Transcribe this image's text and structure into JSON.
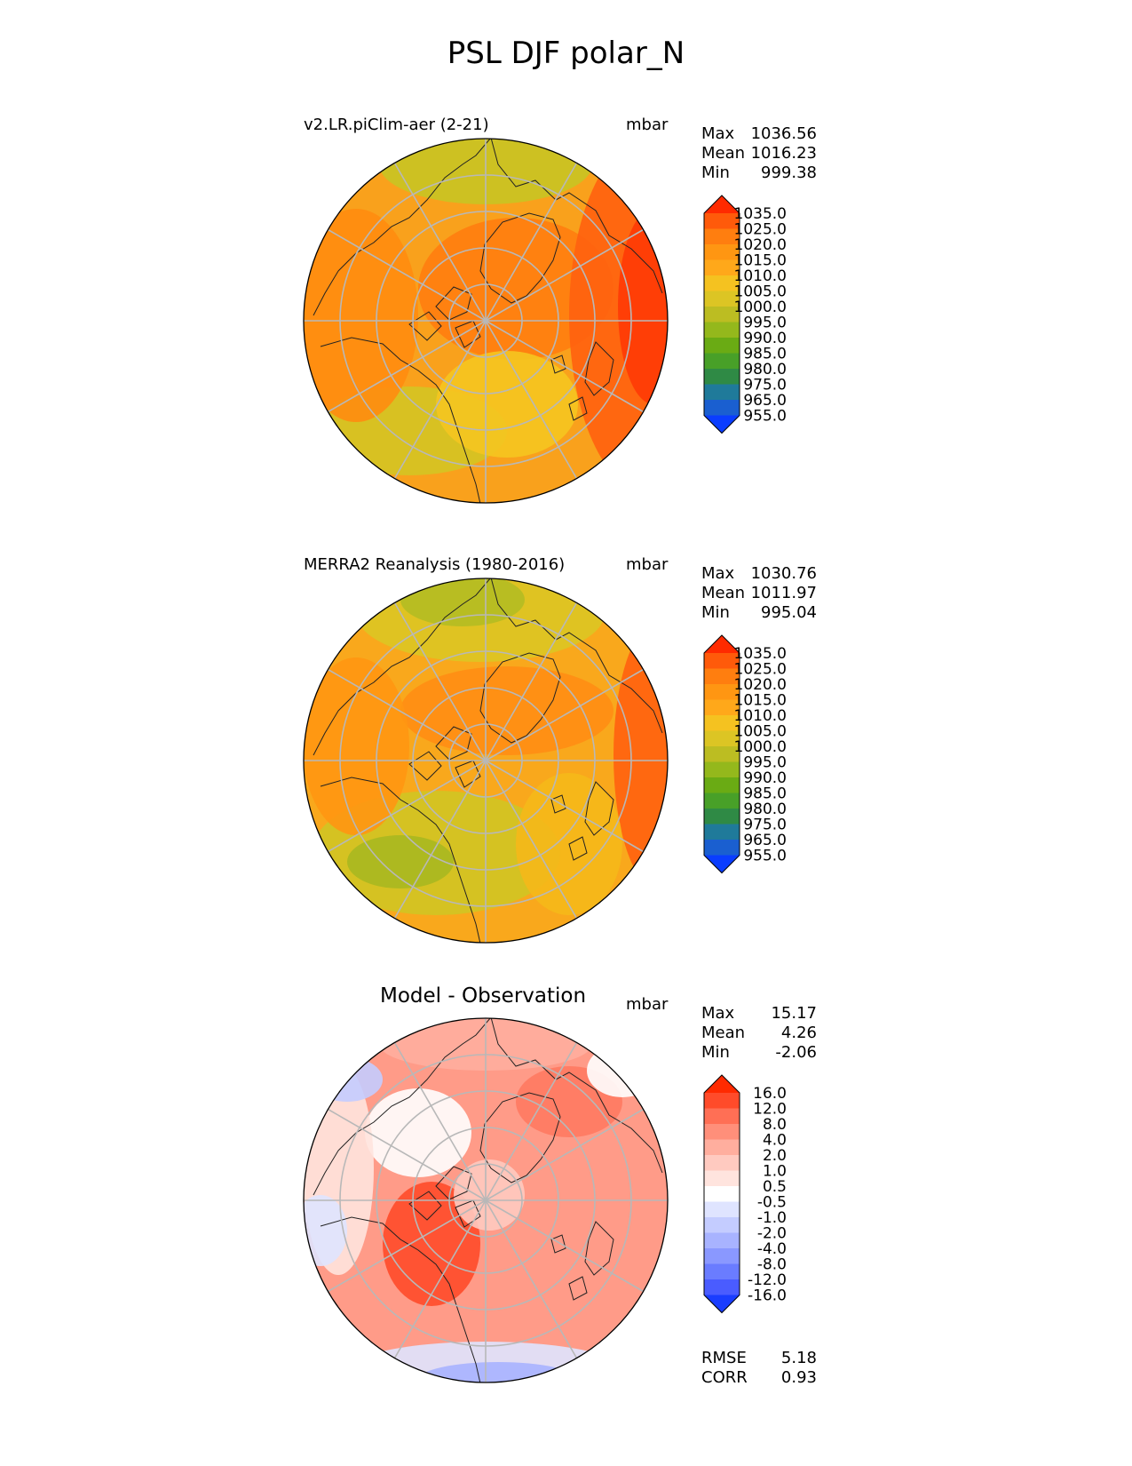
{
  "title": "PSL DJF polar_N",
  "panels": [
    {
      "title": "v2.LR.piClim-aer (2-21)",
      "units": "mbar",
      "stats": [
        {
          "label": "Max",
          "value": "1036.56"
        },
        {
          "label": "Mean",
          "value": "1016.23"
        },
        {
          "label": "Min",
          "value": "999.38"
        }
      ],
      "colorbar": {
        "labels": [
          "1035.0",
          "1025.0",
          "1020.0",
          "1015.0",
          "1010.0",
          "1005.0",
          "1000.0",
          "995.0",
          "990.0",
          "985.0",
          "980.0",
          "975.0",
          "965.0",
          "955.0"
        ],
        "colors": [
          "#ff2a00",
          "#ff5a0a",
          "#ff7e0f",
          "#ff9612",
          "#ffa81a",
          "#f5c220",
          "#dcc524",
          "#bcbd22",
          "#94b81c",
          "#6aab14",
          "#48a028",
          "#2f8a45",
          "#1f7a9a",
          "#1a5fd0",
          "#0a3dff"
        ]
      },
      "map_style": "model"
    },
    {
      "title": "MERRA2 Reanalysis (1980-2016)",
      "units": "mbar",
      "stats": [
        {
          "label": "Max",
          "value": "1030.76"
        },
        {
          "label": "Mean",
          "value": "1011.97"
        },
        {
          "label": "Min",
          "value": "995.04"
        }
      ],
      "colorbar": {
        "labels": [
          "1035.0",
          "1025.0",
          "1020.0",
          "1015.0",
          "1010.0",
          "1005.0",
          "1000.0",
          "995.0",
          "990.0",
          "985.0",
          "980.0",
          "975.0",
          "965.0",
          "955.0"
        ],
        "colors": [
          "#ff2a00",
          "#ff5a0a",
          "#ff7e0f",
          "#ff9612",
          "#ffa81a",
          "#f5c220",
          "#dcc524",
          "#bcbd22",
          "#94b81c",
          "#6aab14",
          "#48a028",
          "#2f8a45",
          "#1f7a9a",
          "#1a5fd0",
          "#0a3dff"
        ]
      },
      "map_style": "obs"
    },
    {
      "title": "Model - Observation",
      "units": "mbar",
      "stats": [
        {
          "label": "Max",
          "value": "15.17"
        },
        {
          "label": "Mean",
          "value": "4.26"
        },
        {
          "label": "Min",
          "value": "-2.06"
        }
      ],
      "colorbar": {
        "labels": [
          "16.0",
          "12.0",
          "8.0",
          "4.0",
          "2.0",
          "1.0",
          "0.5",
          "-0.5",
          "-1.0",
          "-2.0",
          "-4.0",
          "-8.0",
          "-12.0",
          "-16.0"
        ],
        "colors": [
          "#ff2a00",
          "#ff4b2a",
          "#ff6f55",
          "#ff8f7a",
          "#ffae9e",
          "#ffcac0",
          "#ffe4de",
          "#ffffff",
          "#dfe4ff",
          "#c4ccff",
          "#a8b3ff",
          "#8a98ff",
          "#6a7cff",
          "#4a5cff",
          "#1a3dff"
        ]
      },
      "footer": [
        {
          "label": "RMSE",
          "value": "5.18"
        },
        {
          "label": "CORR",
          "value": "0.93"
        }
      ],
      "map_style": "diff"
    }
  ]
}
